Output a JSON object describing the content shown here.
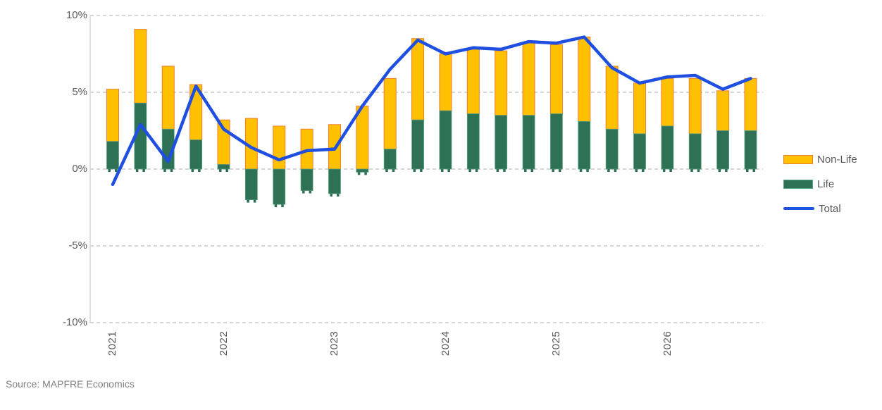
{
  "source_note": "Source: MAPFRE Economics",
  "colors": {
    "non_life_fill": "#FFC000",
    "non_life_border": "#ED7D31",
    "life_fill": "#2E7154",
    "life_border": "#57A184",
    "total_line": "#1F4FE0",
    "gridline": "#C9C9C9",
    "axis_spine": "#D6D6D6",
    "axis_text": "#595959",
    "source_text": "#808080"
  },
  "chart_data": {
    "type": "bar",
    "subtype": "stacked-bars-with-line-overlay",
    "title": "",
    "xlabel": "",
    "ylabel": "",
    "ylim": [
      -10,
      10
    ],
    "grid": "horizontal-dashed",
    "legend_position": "right",
    "categories": [
      "2021 Q1",
      "2021 Q2",
      "2021 Q3",
      "2021 Q4",
      "2022 Q1",
      "2022 Q2",
      "2022 Q3",
      "2022 Q4",
      "2023 Q1",
      "2023 Q2",
      "2023 Q3",
      "2023 Q4",
      "2024 Q1",
      "2024 Q2",
      "2024 Q3",
      "2024 Q4",
      "2025 Q1",
      "2025 Q2",
      "2025 Q3",
      "2025 Q4",
      "2026 Q1",
      "2026 Q2",
      "2026 Q3",
      "2026 Q4"
    ],
    "x_axis": {
      "year_labels": [
        "2021",
        "2022",
        "2023",
        "2024",
        "2025",
        "2026"
      ],
      "year_label_category_indices": [
        0,
        4,
        8,
        12,
        16,
        20
      ],
      "rotation_degrees": -90
    },
    "y_axis": {
      "ticks": [
        {
          "label": "10%",
          "value": 10
        },
        {
          "label": "5%",
          "value": 5
        },
        {
          "label": "0%",
          "value": 0
        },
        {
          "label": "-5%",
          "value": -5
        },
        {
          "label": "-10%",
          "value": -10
        }
      ]
    },
    "series": [
      {
        "name": "Non-Life",
        "type": "bar",
        "color": "#FFC000",
        "border_color": "#ED7D31",
        "values": [
          3.4,
          4.8,
          4.1,
          3.6,
          2.9,
          3.3,
          2.8,
          2.6,
          2.9,
          4.1,
          4.6,
          5.3,
          3.7,
          4.2,
          4.2,
          4.7,
          4.5,
          5.5,
          4.1,
          3.3,
          3.1,
          3.6,
          2.6,
          3.4
        ]
      },
      {
        "name": "Life",
        "type": "bar",
        "color": "#2E7154",
        "border_color": "#57A184",
        "values": [
          1.8,
          4.3,
          2.6,
          1.9,
          0.3,
          -2.0,
          -2.3,
          -1.4,
          -1.6,
          -0.2,
          1.3,
          3.2,
          3.8,
          3.6,
          3.5,
          3.5,
          3.6,
          3.1,
          2.6,
          2.3,
          2.8,
          2.3,
          2.5,
          2.5
        ]
      },
      {
        "name": "Total",
        "type": "line",
        "color": "#1F4FE0",
        "values": [
          -1.0,
          2.9,
          0.5,
          5.4,
          2.6,
          1.4,
          0.6,
          1.2,
          1.3,
          4.1,
          6.5,
          8.4,
          7.5,
          7.9,
          7.8,
          8.3,
          8.2,
          8.6,
          6.6,
          5.6,
          6.0,
          6.1,
          5.2,
          5.9
        ]
      }
    ]
  }
}
